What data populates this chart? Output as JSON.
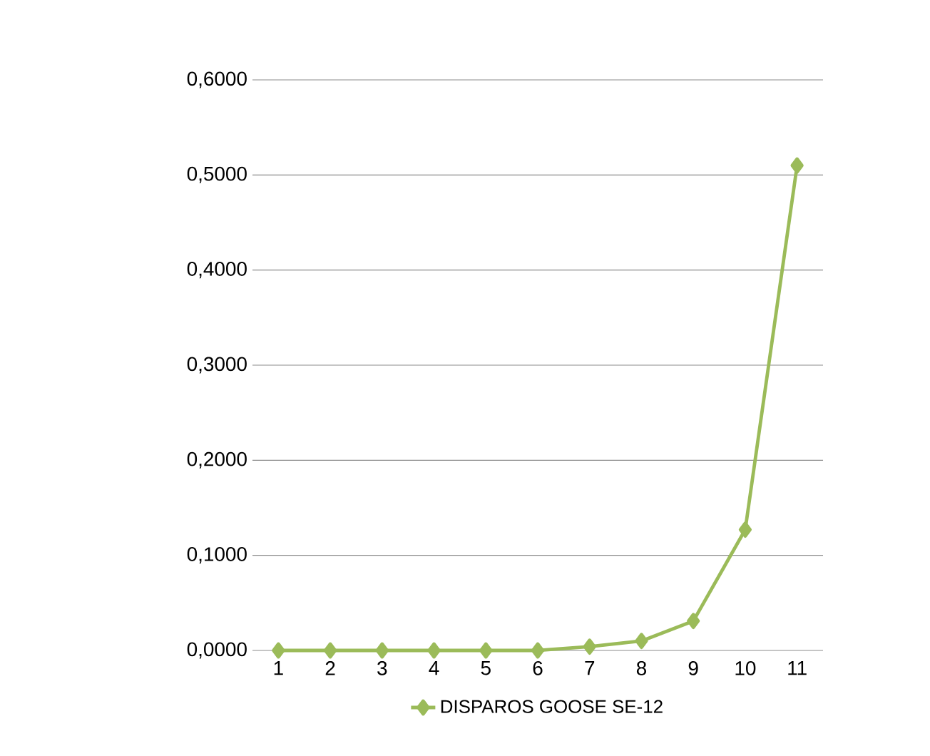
{
  "chart_data": {
    "type": "line",
    "categories": [
      "1",
      "2",
      "3",
      "4",
      "5",
      "6",
      "7",
      "8",
      "9",
      "10",
      "11"
    ],
    "series": [
      {
        "name": "DISPAROS GOOSE SE-12",
        "color": "#9bbb59",
        "values": [
          0,
          0,
          0,
          0,
          0,
          0,
          0.004,
          0.01,
          0.031,
          0.127,
          0.51
        ]
      }
    ],
    "ylim": [
      0,
      0.6
    ],
    "yticks": [
      {
        "value": 0,
        "label": "0,0000"
      },
      {
        "value": 0.1,
        "label": "0,1000"
      },
      {
        "value": 0.2,
        "label": "0,2000"
      },
      {
        "value": 0.3,
        "label": "0,3000"
      },
      {
        "value": 0.4,
        "label": "0,4000"
      },
      {
        "value": 0.5,
        "label": "0,5000"
      },
      {
        "value": 0.6,
        "label": "0,6000"
      }
    ],
    "grid": "y",
    "legend": "bottom",
    "marker": "diamond",
    "line_style": "solid"
  }
}
